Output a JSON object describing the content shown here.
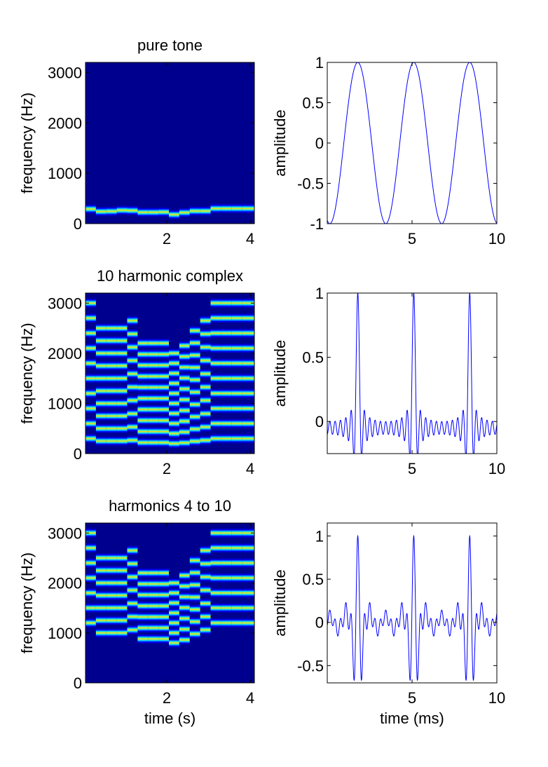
{
  "colors": {
    "background": "#ffffff",
    "spec_bg": "#00008f",
    "trace": "#0000ff",
    "axis": "#000000"
  },
  "chart_data": [
    {
      "type": "heatmap",
      "title": "pure tone",
      "xlabel": "",
      "ylabel": "frequency (Hz)",
      "xlim": [
        0.05,
        4.1
      ],
      "ylim": [
        0,
        3200
      ],
      "xticks": [
        2,
        4
      ],
      "yticks": [
        0,
        1000,
        2000,
        3000
      ],
      "harmonics": [
        1
      ],
      "segments": [
        {
          "t0": 0.05,
          "t1": 0.3,
          "f0": 290
        },
        {
          "t0": 0.3,
          "t1": 0.55,
          "f0": 240
        },
        {
          "t0": 0.55,
          "t1": 0.8,
          "f0": 245
        },
        {
          "t0": 0.8,
          "t1": 1.05,
          "f0": 265
        },
        {
          "t0": 1.05,
          "t1": 1.3,
          "f0": 260
        },
        {
          "t0": 1.3,
          "t1": 1.55,
          "f0": 225
        },
        {
          "t0": 1.55,
          "t1": 1.8,
          "f0": 225
        },
        {
          "t0": 1.8,
          "t1": 2.05,
          "f0": 230
        },
        {
          "t0": 2.05,
          "t1": 2.3,
          "f0": 180
        },
        {
          "t0": 2.3,
          "t1": 2.55,
          "f0": 220
        },
        {
          "t0": 2.55,
          "t1": 2.8,
          "f0": 250
        },
        {
          "t0": 2.8,
          "t1": 3.05,
          "f0": 250
        },
        {
          "t0": 3.05,
          "t1": 3.3,
          "f0": 300
        },
        {
          "t0": 3.3,
          "t1": 3.55,
          "f0": 300
        },
        {
          "t0": 3.55,
          "t1": 3.8,
          "f0": 300
        },
        {
          "t0": 3.8,
          "t1": 4.1,
          "f0": 300
        }
      ]
    },
    {
      "type": "line",
      "title": "",
      "xlabel": "",
      "ylabel": "amplitude",
      "xlim": [
        0,
        10
      ],
      "ylim": [
        -1,
        1
      ],
      "xticks": [
        5,
        10
      ],
      "yticks": [
        -1,
        -0.5,
        0,
        0.5,
        1
      ],
      "ytick_labels": [
        "-1",
        "-0.5",
        "0",
        "0.5",
        "1"
      ],
      "signal": {
        "period_ms": 3.3,
        "peak_ms": 1.8,
        "harmonics": [
          1
        ]
      }
    },
    {
      "type": "heatmap",
      "title": "10 harmonic complex",
      "xlabel": "",
      "ylabel": "frequency (Hz)",
      "xlim": [
        0.05,
        4.1
      ],
      "ylim": [
        0,
        3200
      ],
      "xticks": [
        2,
        4
      ],
      "yticks": [
        0,
        1000,
        2000,
        3000
      ],
      "harmonics": [
        1,
        2,
        3,
        4,
        5,
        6,
        7,
        8,
        9,
        10
      ],
      "segments": [
        {
          "t0": 0.05,
          "t1": 0.3,
          "f0": 300
        },
        {
          "t0": 0.3,
          "t1": 0.55,
          "f0": 250
        },
        {
          "t0": 0.55,
          "t1": 0.8,
          "f0": 250
        },
        {
          "t0": 0.8,
          "t1": 1.05,
          "f0": 250
        },
        {
          "t0": 1.05,
          "t1": 1.3,
          "f0": 265
        },
        {
          "t0": 1.3,
          "t1": 1.55,
          "f0": 220
        },
        {
          "t0": 1.55,
          "t1": 1.8,
          "f0": 220
        },
        {
          "t0": 1.8,
          "t1": 2.05,
          "f0": 220
        },
        {
          "t0": 2.05,
          "t1": 2.3,
          "f0": 200
        },
        {
          "t0": 2.3,
          "t1": 2.55,
          "f0": 215
        },
        {
          "t0": 2.55,
          "t1": 2.8,
          "f0": 245
        },
        {
          "t0": 2.8,
          "t1": 3.05,
          "f0": 265
        },
        {
          "t0": 3.05,
          "t1": 3.3,
          "f0": 300
        },
        {
          "t0": 3.3,
          "t1": 3.55,
          "f0": 300
        },
        {
          "t0": 3.55,
          "t1": 3.8,
          "f0": 300
        },
        {
          "t0": 3.8,
          "t1": 4.1,
          "f0": 300
        }
      ]
    },
    {
      "type": "line",
      "title": "",
      "xlabel": "",
      "ylabel": "amplitude",
      "xlim": [
        0,
        10
      ],
      "ylim": [
        -0.25,
        1
      ],
      "xticks": [
        5,
        10
      ],
      "yticks": [
        0,
        0.5,
        1
      ],
      "ytick_labels": [
        "0",
        "0.5",
        "1"
      ],
      "signal": {
        "period_ms": 3.3,
        "peak_ms": 1.8,
        "harmonics": [
          1,
          2,
          3,
          4,
          5,
          6,
          7,
          8,
          9,
          10
        ]
      }
    },
    {
      "type": "heatmap",
      "title": "harmonics 4 to 10",
      "xlabel": "time (s)",
      "ylabel": "frequency (Hz)",
      "xlim": [
        0.05,
        4.1
      ],
      "ylim": [
        0,
        3200
      ],
      "xticks": [
        2,
        4
      ],
      "yticks": [
        0,
        1000,
        2000,
        3000
      ],
      "harmonics": [
        4,
        5,
        6,
        7,
        8,
        9,
        10
      ],
      "segments": [
        {
          "t0": 0.05,
          "t1": 0.3,
          "f0": 300
        },
        {
          "t0": 0.3,
          "t1": 0.55,
          "f0": 250
        },
        {
          "t0": 0.55,
          "t1": 0.8,
          "f0": 250
        },
        {
          "t0": 0.8,
          "t1": 1.05,
          "f0": 250
        },
        {
          "t0": 1.05,
          "t1": 1.3,
          "f0": 265
        },
        {
          "t0": 1.3,
          "t1": 1.55,
          "f0": 220
        },
        {
          "t0": 1.55,
          "t1": 1.8,
          "f0": 220
        },
        {
          "t0": 1.8,
          "t1": 2.05,
          "f0": 220
        },
        {
          "t0": 2.05,
          "t1": 2.3,
          "f0": 200
        },
        {
          "t0": 2.3,
          "t1": 2.55,
          "f0": 215
        },
        {
          "t0": 2.55,
          "t1": 2.8,
          "f0": 245
        },
        {
          "t0": 2.8,
          "t1": 3.05,
          "f0": 265
        },
        {
          "t0": 3.05,
          "t1": 3.3,
          "f0": 300
        },
        {
          "t0": 3.3,
          "t1": 3.55,
          "f0": 300
        },
        {
          "t0": 3.55,
          "t1": 3.8,
          "f0": 300
        },
        {
          "t0": 3.8,
          "t1": 4.1,
          "f0": 300
        }
      ]
    },
    {
      "type": "line",
      "title": "",
      "xlabel": "time (ms)",
      "ylabel": "amplitude",
      "xlim": [
        0,
        10
      ],
      "ylim": [
        -0.7,
        1.15
      ],
      "xticks": [
        5,
        10
      ],
      "yticks": [
        -0.5,
        0,
        0.5,
        1
      ],
      "ytick_labels": [
        "-0.5",
        "0",
        "0.5",
        "1"
      ],
      "signal": {
        "period_ms": 3.3,
        "peak_ms": 1.8,
        "harmonics": [
          4,
          5,
          6,
          7,
          8,
          9,
          10
        ]
      }
    }
  ]
}
